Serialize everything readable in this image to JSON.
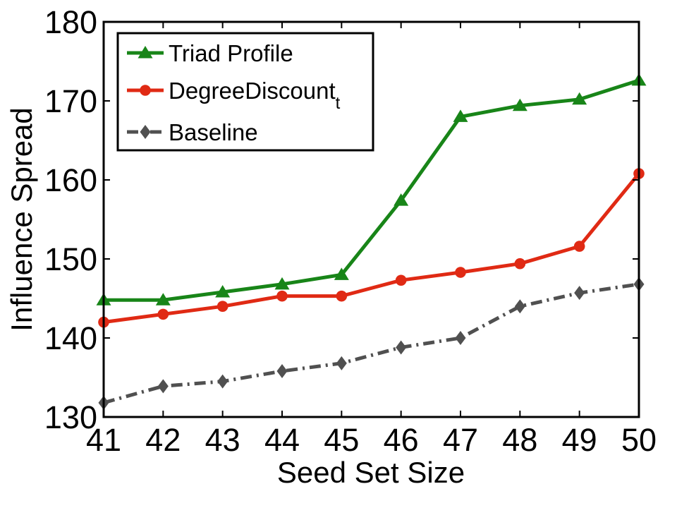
{
  "chart_data": {
    "type": "line",
    "title": "",
    "xlabel": "Seed Set Size",
    "ylabel": "Influence Spread",
    "x": [
      41,
      42,
      43,
      44,
      45,
      46,
      47,
      48,
      49,
      50
    ],
    "xlim": [
      41,
      50
    ],
    "ylim": [
      130,
      180
    ],
    "yticks": [
      130,
      140,
      150,
      160,
      170,
      180
    ],
    "grid": false,
    "legend_position": "top-left",
    "series": [
      {
        "name": "Triad Profile",
        "color": "#188518",
        "marker": "triangle",
        "line_style": "solid",
        "values": [
          144.8,
          144.8,
          145.8,
          146.8,
          148.0,
          157.4,
          168.0,
          169.4,
          170.2,
          172.6
        ]
      },
      {
        "name": "DegreeDiscount",
        "name_subscript": "t",
        "color": "#e02a14",
        "marker": "circle",
        "line_style": "solid",
        "values": [
          142.0,
          143.0,
          144.0,
          145.3,
          145.3,
          147.3,
          148.3,
          149.4,
          151.6,
          160.8
        ]
      },
      {
        "name": "Baseline",
        "color": "#505050",
        "marker": "diamond",
        "line_style": "dashdot",
        "values": [
          131.8,
          133.9,
          134.5,
          135.8,
          136.8,
          138.8,
          140.0,
          144.0,
          145.7,
          146.8
        ]
      }
    ]
  }
}
